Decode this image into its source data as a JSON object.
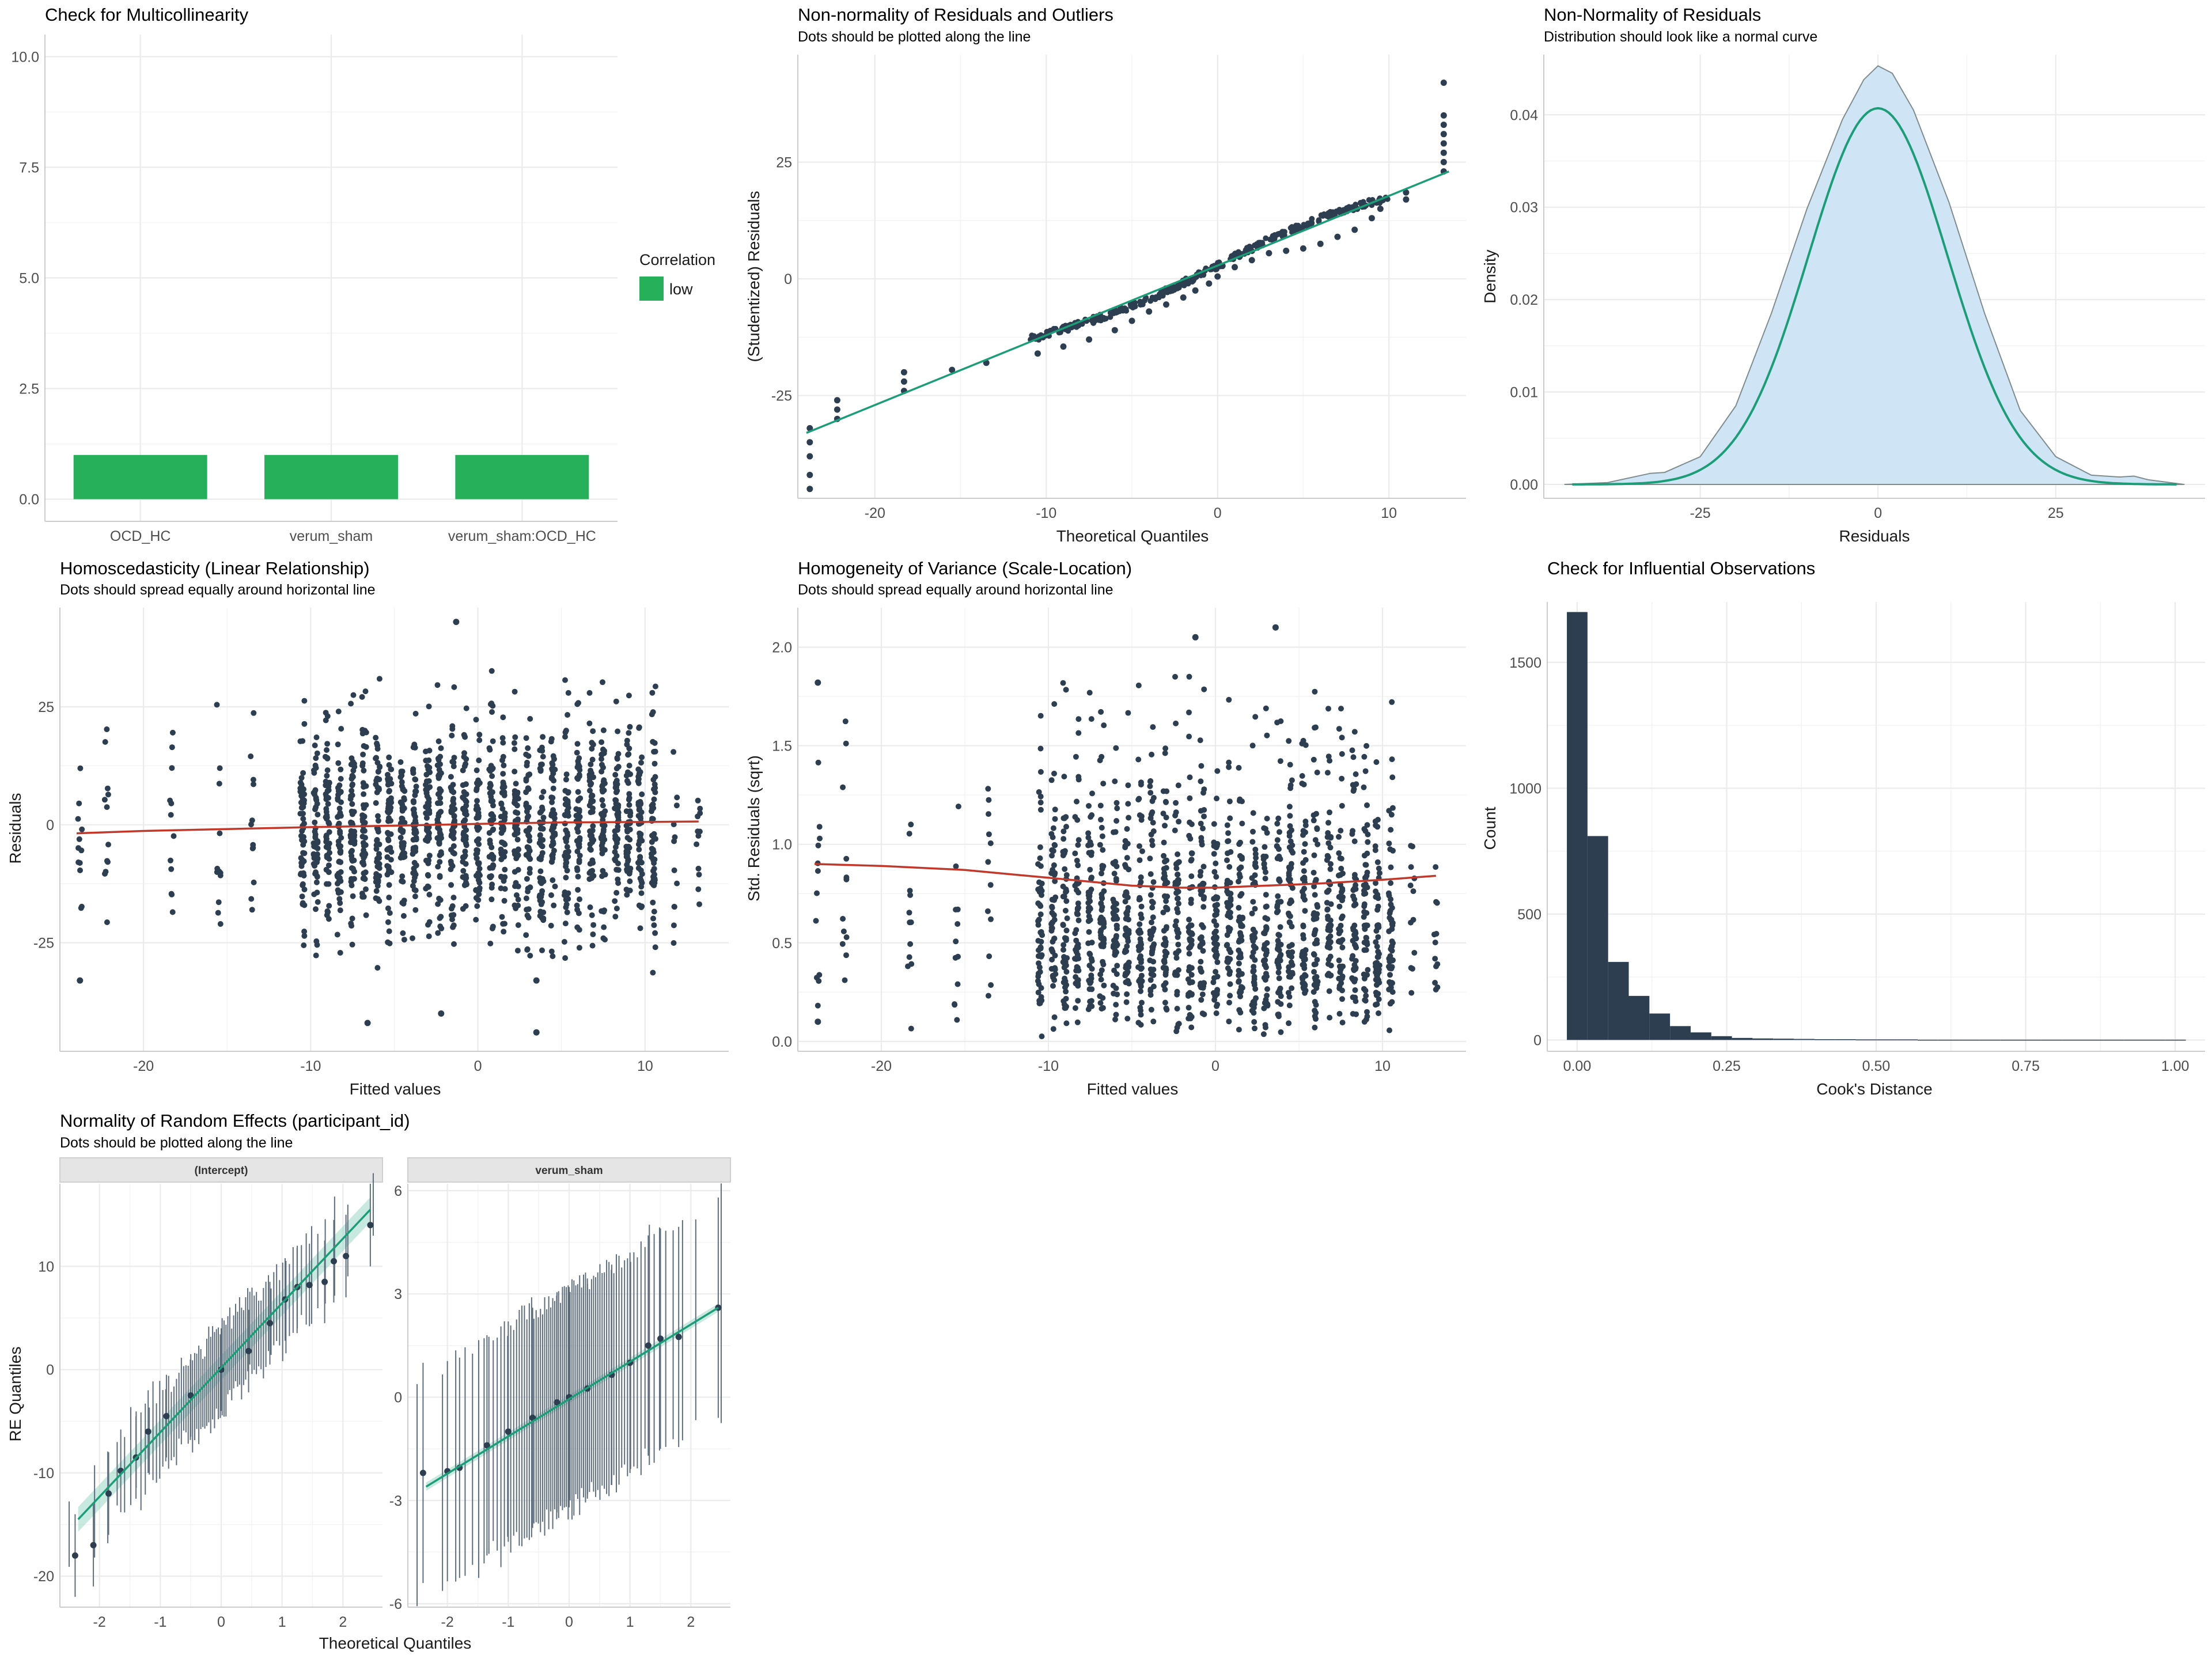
{
  "colors": {
    "dot": "#2c3e50",
    "green_bar": "#27b05a",
    "reference": "#1b9e77",
    "loess": "#c0392b",
    "density_fill": "#cfe5f6",
    "grid": "#ebebeb",
    "strip_bg": "#e5e5e5"
  },
  "chart_data": [
    {
      "id": "collinearity",
      "type": "bar",
      "title": "Check for Multicollinearity",
      "subtitle": "",
      "xlabel": "",
      "ylabel": "",
      "categories": [
        "OCD_HC",
        "verum_sham",
        "verum_sham:OCD_HC"
      ],
      "values": [
        1.0,
        1.0,
        1.0
      ],
      "ylim": [
        0,
        10
      ],
      "yticks": [
        0,
        2.5,
        5,
        7.5,
        10
      ],
      "ytick_labels": [
        "0.0",
        "2.5",
        "5.0",
        "7.5",
        "10.0"
      ],
      "legend": {
        "title": "Correlation",
        "items": [
          "low"
        ],
        "placement": "right"
      }
    },
    {
      "id": "qq_residuals",
      "type": "scatter",
      "title": "Non-normality of Residuals and Outliers",
      "subtitle": "Dots should be plotted along the line",
      "xlabel": "Theoretical Quantiles",
      "ylabel": "(Studentized) Residuals",
      "xlim": [
        -24.5,
        14.5
      ],
      "ylim": [
        -47,
        48
      ],
      "xticks": [
        -20,
        -10,
        0,
        10
      ],
      "yticks": [
        -25,
        0,
        25
      ],
      "reference_line": {
        "x": [
          -24,
          13.5
        ],
        "y": [
          -33,
          23
        ]
      },
      "points": [
        [
          -23.8,
          -45
        ],
        [
          -23.8,
          -42
        ],
        [
          -23.8,
          -38
        ],
        [
          -23.8,
          -35
        ],
        [
          -23.8,
          -32
        ],
        [
          -22.2,
          -30
        ],
        [
          -22.2,
          -28
        ],
        [
          -22.2,
          -26
        ],
        [
          -18.3,
          -24
        ],
        [
          -18.3,
          -22
        ],
        [
          -18.3,
          -20
        ],
        [
          -15.5,
          -19.5
        ],
        [
          -13.5,
          -18
        ],
        [
          -10.5,
          -16
        ],
        [
          -9,
          -14.5
        ],
        [
          -7.5,
          -13
        ],
        [
          -6,
          -11
        ],
        [
          -5,
          -9
        ],
        [
          -4,
          -7
        ],
        [
          -3,
          -5.5
        ],
        [
          -2,
          -4
        ],
        [
          -1.3,
          -2.5
        ],
        [
          -0.5,
          -1
        ],
        [
          0,
          0.5
        ],
        [
          1,
          2.5
        ],
        [
          2,
          4
        ],
        [
          3,
          5.5
        ],
        [
          4,
          6
        ],
        [
          5,
          6.5
        ],
        [
          6,
          7.5
        ],
        [
          7,
          9
        ],
        [
          8,
          10.5
        ],
        [
          9,
          13
        ],
        [
          9.5,
          15
        ],
        [
          11,
          17
        ],
        [
          11,
          18.5
        ],
        [
          13.2,
          23
        ],
        [
          13.2,
          25
        ],
        [
          13.2,
          27
        ],
        [
          13.2,
          29
        ],
        [
          13.2,
          31
        ],
        [
          13.2,
          33
        ],
        [
          13.2,
          35
        ],
        [
          13.2,
          42
        ]
      ]
    },
    {
      "id": "density_residuals",
      "type": "area",
      "title": "Non-Normality of Residuals",
      "subtitle": "Distribution should look like a normal curve",
      "xlabel": "Residuals",
      "ylabel": "Density",
      "xlim": [
        -47,
        46
      ],
      "ylim": [
        -0.0015,
        0.0465
      ],
      "xticks": [
        -25,
        0,
        25
      ],
      "yticks": [
        0,
        0.01,
        0.02,
        0.03,
        0.04
      ],
      "ytick_labels": [
        "0.00",
        "0.01",
        "0.02",
        "0.03",
        "0.04"
      ],
      "empirical": {
        "x": [
          -44,
          -38,
          -32,
          -30,
          -25,
          -20,
          -15,
          -10,
          -5,
          -2,
          0,
          2,
          5,
          10,
          15,
          20,
          25,
          30,
          34,
          36,
          38,
          43
        ],
        "y": [
          0,
          0.0002,
          0.0012,
          0.0013,
          0.003,
          0.0085,
          0.0185,
          0.0298,
          0.0395,
          0.0438,
          0.0453,
          0.0445,
          0.0405,
          0.0305,
          0.0185,
          0.008,
          0.003,
          0.001,
          0.0008,
          0.0009,
          0.0005,
          0
        ]
      },
      "normal_curve": {
        "mean": 0,
        "sd": 9.8,
        "xrange": [
          -43,
          42
        ]
      }
    },
    {
      "id": "linearity",
      "type": "scatter",
      "title": "Homoscedasticity (Linear Relationship)",
      "subtitle": "Dots should spread equally around horizontal line",
      "xlabel": "Fitted values",
      "ylabel": "Residuals",
      "xlim": [
        -25,
        15
      ],
      "ylim": [
        -48,
        46
      ],
      "xticks": [
        -20,
        -10,
        0,
        10
      ],
      "yticks": [
        -25,
        0,
        25
      ],
      "fitted_columns": [
        -23.8,
        -22.2,
        -18.3,
        -15.5,
        -13.5,
        -10.5,
        -9.7,
        -9,
        -8.3,
        -7.5,
        -6.8,
        -6,
        -5.3,
        -4.5,
        -3.8,
        -3,
        -2.3,
        -1.5,
        -0.8,
        0,
        0.8,
        1.5,
        2.3,
        3,
        3.8,
        4.5,
        5.3,
        6,
        6.8,
        7.5,
        8.3,
        9,
        9.7,
        10.5,
        11.8,
        13.2
      ],
      "spread_sd": 11,
      "extreme_points": [
        [
          -1.3,
          43
        ],
        [
          3.5,
          -44
        ],
        [
          -6.6,
          -42
        ],
        [
          -2.2,
          -40
        ],
        [
          -23.8,
          -33
        ],
        [
          3.5,
          -33
        ]
      ],
      "loess": {
        "x": [
          -24,
          -20,
          -15,
          -10,
          -5,
          0,
          5,
          10,
          13.2
        ],
        "y": [
          -1.8,
          -1.3,
          -0.9,
          -0.5,
          -0.2,
          0.2,
          0.5,
          0.6,
          0.7
        ]
      }
    },
    {
      "id": "homogeneity",
      "type": "scatter",
      "title": "Homogeneity of Variance (Scale-Location)",
      "subtitle": "Dots should spread equally around horizontal line",
      "xlabel": "Fitted values",
      "ylabel": "Std. Residuals (sqrt)",
      "xlim": [
        -25,
        15
      ],
      "ylim": [
        -0.05,
        2.2
      ],
      "xticks": [
        -20,
        -10,
        0,
        10
      ],
      "yticks": [
        0,
        0.5,
        1,
        1.5,
        2
      ],
      "ytick_labels": [
        "0.0",
        "0.5",
        "1.0",
        "1.5",
        "2.0"
      ],
      "fitted_columns": [
        -23.8,
        -22.2,
        -18.3,
        -15.5,
        -13.5,
        -10.5,
        -9.7,
        -9,
        -8.3,
        -7.5,
        -6.8,
        -6,
        -5.3,
        -4.5,
        -3.8,
        -3,
        -2.3,
        -1.5,
        -0.8,
        0,
        0.8,
        1.5,
        2.3,
        3,
        3.8,
        4.5,
        5.3,
        6,
        6.8,
        7.5,
        8.3,
        9,
        9.7,
        10.5,
        11.8,
        13.2
      ],
      "extreme_points": [
        [
          -1.2,
          2.05
        ],
        [
          3.6,
          2.1
        ],
        [
          -23.8,
          1.82
        ],
        [
          -23.8,
          0.1
        ]
      ],
      "loess": {
        "x": [
          -24,
          -20,
          -15,
          -10,
          -5,
          -2,
          0,
          3,
          6,
          10,
          13.2
        ],
        "y": [
          0.9,
          0.89,
          0.87,
          0.83,
          0.79,
          0.78,
          0.78,
          0.79,
          0.8,
          0.82,
          0.84
        ]
      }
    },
    {
      "id": "influential",
      "type": "bar",
      "title": "Check for Influential Observations",
      "subtitle": "",
      "xlabel": "Cook's Distance",
      "ylabel": "Count",
      "xlim": [
        -0.05,
        1.05
      ],
      "ylim": [
        -45,
        1740
      ],
      "xticks": [
        0,
        0.25,
        0.5,
        0.75,
        1
      ],
      "xtick_labels": [
        "0.00",
        "0.25",
        "0.50",
        "0.75",
        "1.00"
      ],
      "yticks": [
        0,
        500,
        1000,
        1500
      ],
      "bin_width": 0.0345,
      "bin_start": -0.0172,
      "counts": [
        1700,
        810,
        310,
        175,
        105,
        55,
        30,
        15,
        8,
        6,
        5,
        4,
        3,
        3,
        2,
        2,
        2,
        1,
        1,
        1,
        1,
        1,
        1,
        1,
        1,
        1,
        1,
        1,
        1,
        1
      ]
    },
    {
      "id": "random_effects",
      "type": "scatter",
      "title": "Normality of Random Effects (participant_id)",
      "subtitle": "Dots should be plotted along the line",
      "xlabel": "Theoretical Quantiles",
      "ylabel": "RE Quantiles",
      "facets": [
        {
          "strip": "(Intercept)",
          "xlim": [
            -2.65,
            2.65
          ],
          "ylim": [
            -23,
            18
          ],
          "xticks": [
            -2,
            -1,
            0,
            1,
            2
          ],
          "xtick_labels": [
            "-2",
            "-1",
            "0",
            "1",
            "2"
          ],
          "yticks": [
            -20,
            -10,
            0,
            10
          ],
          "n": 80,
          "reference_line": {
            "x": [
              -2.35,
              2.45
            ],
            "y": [
              -14.5,
              15.5
            ]
          },
          "points": [
            [
              -2.4,
              -18
            ],
            [
              -2.1,
              -17
            ],
            [
              -1.85,
              -12
            ],
            [
              -1.65,
              -9.8
            ],
            [
              -1.4,
              -8.5
            ],
            [
              -1.2,
              -6
            ],
            [
              -0.9,
              -4.5
            ],
            [
              -0.5,
              -2.5
            ],
            [
              0,
              0
            ],
            [
              0.45,
              1.8
            ],
            [
              0.8,
              4.5
            ],
            [
              1.05,
              6.8
            ],
            [
              1.25,
              8
            ],
            [
              1.45,
              8.2
            ],
            [
              1.7,
              8.5
            ],
            [
              1.85,
              10.5
            ],
            [
              2.05,
              11
            ],
            [
              2.45,
              14
            ]
          ]
        },
        {
          "strip": "verum_sham",
          "xlim": [
            -2.65,
            2.65
          ],
          "ylim": [
            -6.1,
            6.2
          ],
          "xticks": [
            -2,
            -1,
            0,
            1,
            2
          ],
          "xtick_labels": [
            "-2",
            "-1",
            "0",
            "1",
            "2"
          ],
          "yticks": [
            -6,
            -3,
            0,
            3,
            6
          ],
          "n": 80,
          "reference_line": {
            "x": [
              -2.35,
              2.45
            ],
            "y": [
              -2.6,
              2.6
            ]
          },
          "points": [
            [
              -2.4,
              -2.2
            ],
            [
              -2.0,
              -2.15
            ],
            [
              -1.8,
              -2.05
            ],
            [
              -1.35,
              -1.4
            ],
            [
              -1.0,
              -1.0
            ],
            [
              -0.6,
              -0.6
            ],
            [
              -0.2,
              -0.15
            ],
            [
              0,
              0
            ],
            [
              0.3,
              0.25
            ],
            [
              0.7,
              0.65
            ],
            [
              1.0,
              1.0
            ],
            [
              1.3,
              1.5
            ],
            [
              1.5,
              1.7
            ],
            [
              1.8,
              1.75
            ],
            [
              2.45,
              2.6
            ]
          ]
        }
      ]
    }
  ]
}
